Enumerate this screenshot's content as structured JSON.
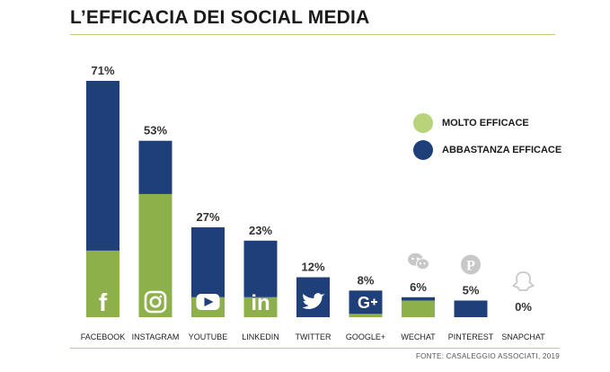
{
  "title": "L’EFFICACIA DEI SOCIAL MEDIA",
  "source": "FONTE: CASALEGGIO ASSOCIATI, 2019",
  "colors": {
    "molto": "#8db04a",
    "abbastanza": "#1f3f7a",
    "icon_gray": "#c8c8c8",
    "rule": "#b9cf7a"
  },
  "legend": [
    {
      "label": "MOLTO EFFICACE",
      "color": "#b9d37a"
    },
    {
      "label": "ABBASTANZA EFFICACE",
      "color": "#1f3f7a"
    }
  ],
  "chart_data": {
    "type": "bar",
    "stacked": true,
    "categories": [
      "FACEBOOK",
      "INSTAGRAM",
      "YOUTUBE",
      "LINKEDIN",
      "TWITTER",
      "GOOGLE+",
      "WECHAT",
      "PINTEREST",
      "SNAPCHAT"
    ],
    "totals_labels": [
      "71%",
      "53%",
      "27%",
      "23%",
      "12%",
      "8%",
      "6%",
      "5%",
      "0%"
    ],
    "series": [
      {
        "name": "MOLTO EFFICACE",
        "values": [
          20,
          37,
          6,
          6,
          0,
          1,
          5,
          0,
          0
        ]
      },
      {
        "name": "ABBASTANZA EFFICACE",
        "values": [
          51,
          16,
          21,
          17,
          12,
          7,
          1,
          5,
          0
        ]
      }
    ],
    "ylim": [
      0,
      71
    ],
    "icons": [
      "facebook-icon",
      "instagram-icon",
      "youtube-icon",
      "linkedin-icon",
      "twitter-icon",
      "google-plus-icon",
      "wechat-icon",
      "pinterest-icon",
      "snapchat-icon"
    ],
    "legend_position": "top-right"
  }
}
